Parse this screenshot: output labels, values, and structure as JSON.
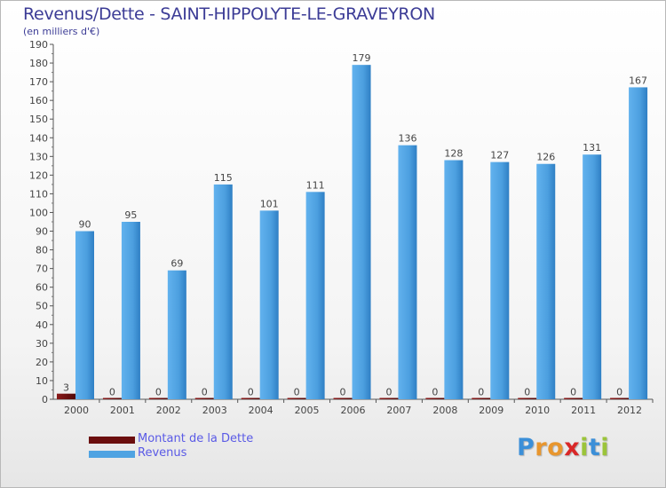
{
  "header": {
    "title": "Revenus/Dette - SAINT-HIPPOLYTE-LE-GRAVEYRON",
    "subtitle": "(en milliers d'€)"
  },
  "legend": {
    "items": [
      {
        "label": "Montant de la Dette",
        "color": "#6b0e0e"
      },
      {
        "label": "Revenus",
        "color": "#4fa3e2"
      }
    ]
  },
  "logo": {
    "text": "Proxiti",
    "letters": [
      {
        "ch": "P",
        "color": "#3b8fd8"
      },
      {
        "ch": "r",
        "color": "#e8962e"
      },
      {
        "ch": "o",
        "color": "#e8962e"
      },
      {
        "ch": "x",
        "color": "#d92727"
      },
      {
        "ch": "i",
        "color": "#9bc43a"
      },
      {
        "ch": "t",
        "color": "#3b8fd8"
      },
      {
        "ch": "i",
        "color": "#9bc43a"
      }
    ]
  },
  "chart_data": {
    "type": "bar",
    "title": "Revenus/Dette - SAINT-HIPPOLYTE-LE-GRAVEYRON",
    "ylabel": "(en milliers d'€)",
    "xlabel": "",
    "ylim": [
      0,
      190
    ],
    "ytick_step": 10,
    "grid": false,
    "legend_position": "bottom-left",
    "categories": [
      "2000",
      "2001",
      "2002",
      "2003",
      "2004",
      "2005",
      "2006",
      "2007",
      "2008",
      "2009",
      "2010",
      "2011",
      "2012"
    ],
    "series": [
      {
        "name": "Montant de la Dette",
        "color": "#6b0e0e",
        "values": [
          3,
          0,
          0,
          0,
          0,
          0,
          0,
          0,
          0,
          0,
          0,
          0,
          0
        ]
      },
      {
        "name": "Revenus",
        "color": "#4fa3e2",
        "values": [
          90,
          95,
          69,
          115,
          101,
          111,
          179,
          136,
          128,
          127,
          126,
          131,
          167
        ]
      }
    ]
  }
}
